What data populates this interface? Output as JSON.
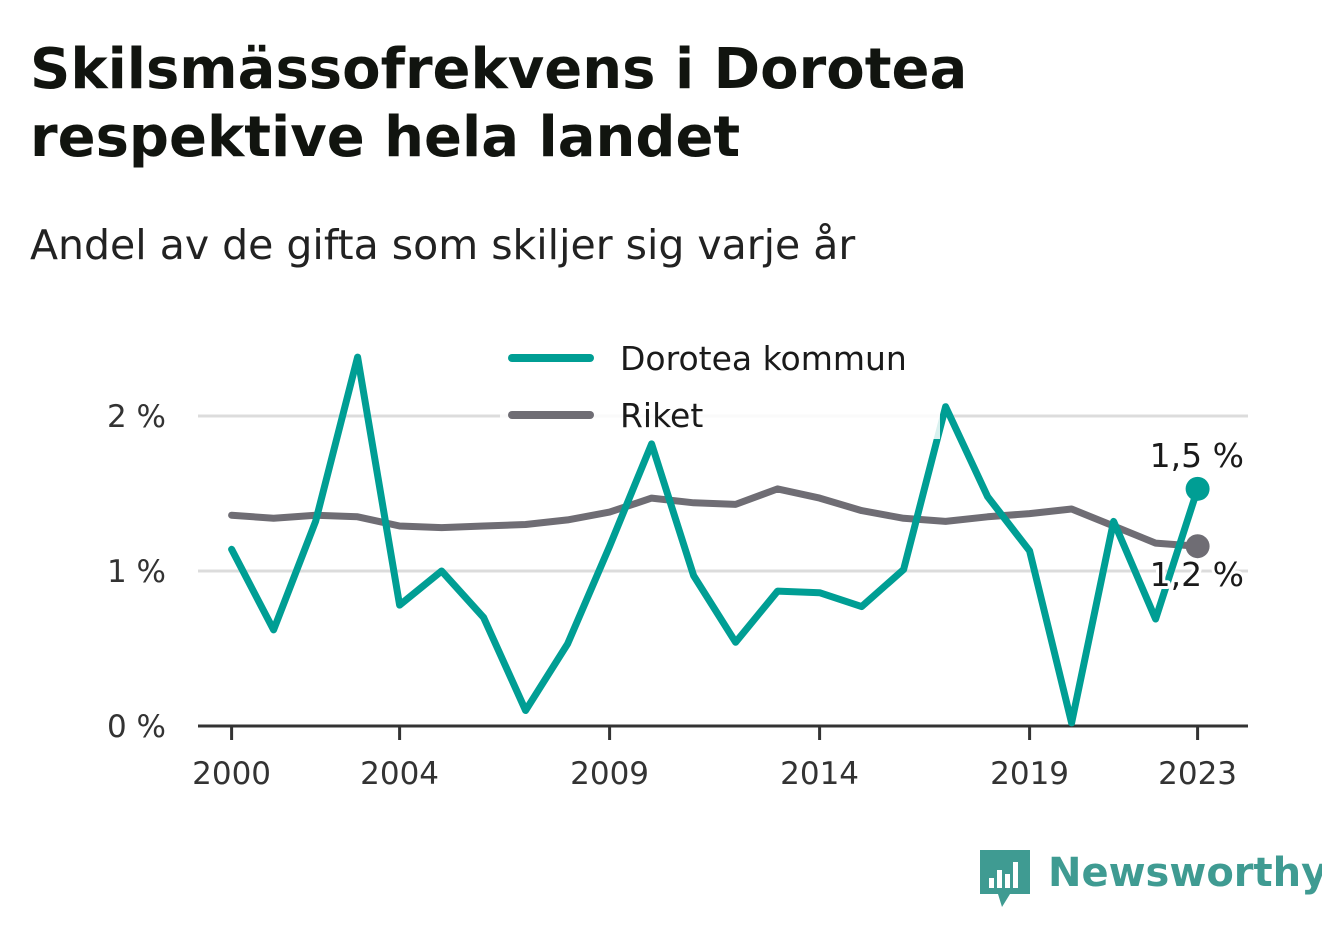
{
  "title": "Skilsmässofrekvens i Dorotea respektive hela landet",
  "subtitle": "Andel av de gifta som skiljer sig varje år",
  "brand": {
    "name": "Newsworthy",
    "icon": "newsworthy-bar-chart-icon",
    "color": "#3f9b92"
  },
  "chart_data": {
    "type": "line",
    "title": "Skilsmässofrekvens i Dorotea respektive hela landet",
    "subtitle": "Andel av de gifta som skiljer sig varje år",
    "xlabel": "",
    "ylabel": "",
    "x": [
      2000,
      2001,
      2002,
      2003,
      2004,
      2005,
      2006,
      2007,
      2008,
      2009,
      2010,
      2011,
      2012,
      2013,
      2014,
      2015,
      2016,
      2017,
      2018,
      2019,
      2020,
      2021,
      2022,
      2023
    ],
    "xticks": [
      2000,
      2004,
      2009,
      2014,
      2019,
      2023
    ],
    "xlim": [
      1999.2,
      2024.2
    ],
    "ylim": [
      0,
      2.0
    ],
    "yticks": [
      0,
      1,
      2
    ],
    "ytick_labels": [
      "0 %",
      "1 %",
      "2 %"
    ],
    "grid": true,
    "legend_position": "top-center",
    "series": [
      {
        "name": "Dorotea kommun",
        "color": "#009e94",
        "values": [
          1.14,
          0.62,
          1.32,
          2.38,
          0.78,
          1.0,
          0.7,
          0.1,
          0.53,
          1.16,
          1.82,
          0.97,
          0.54,
          0.87,
          0.86,
          0.77,
          1.01,
          2.06,
          1.48,
          1.13,
          0.02,
          1.32,
          0.69,
          1.53
        ],
        "end_label": "1,5 %"
      },
      {
        "name": "Riket",
        "color": "#6f6d74",
        "values": [
          1.36,
          1.34,
          1.36,
          1.35,
          1.29,
          1.28,
          1.29,
          1.3,
          1.33,
          1.38,
          1.47,
          1.44,
          1.43,
          1.53,
          1.47,
          1.39,
          1.34,
          1.32,
          1.35,
          1.37,
          1.4,
          1.29,
          1.18,
          1.16
        ],
        "end_label": "1,2 %"
      }
    ]
  }
}
